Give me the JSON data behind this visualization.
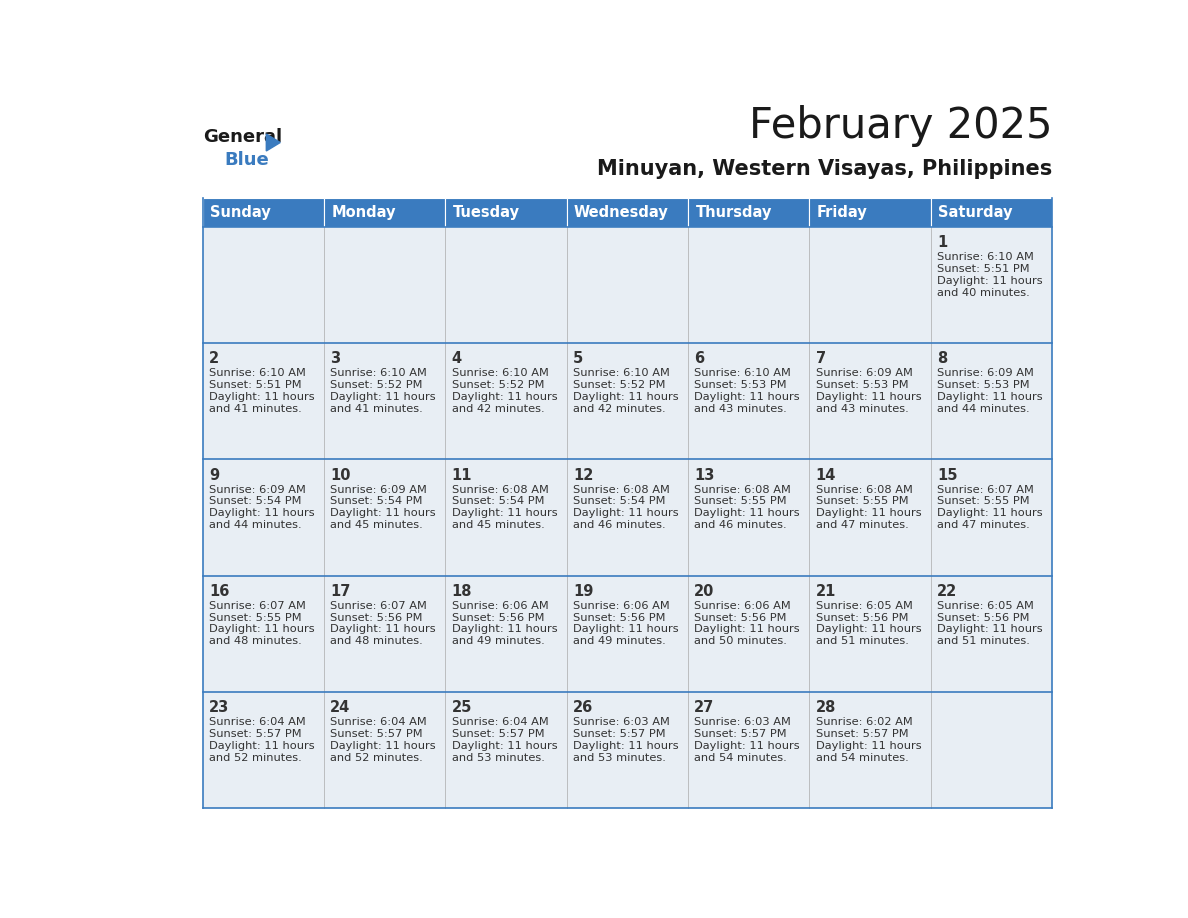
{
  "title": "February 2025",
  "subtitle": "Minuyan, Western Visayas, Philippines",
  "days_of_week": [
    "Sunday",
    "Monday",
    "Tuesday",
    "Wednesday",
    "Thursday",
    "Friday",
    "Saturday"
  ],
  "header_bg": "#3a7bbf",
  "header_text": "#ffffff",
  "cell_bg_light": "#e8eef4",
  "cell_bg_white": "#ffffff",
  "cell_border": "#3a7bbf",
  "row_border": "#3a7bbf",
  "day_num_color": "#333333",
  "info_text_color": "#333333",
  "title_color": "#1a1a1a",
  "subtitle_color": "#1a1a1a",
  "calendar": [
    [
      null,
      null,
      null,
      null,
      null,
      null,
      {
        "day": 1,
        "sunrise": "6:10 AM",
        "sunset": "5:51 PM",
        "daylight": "11 hours and 40 minutes."
      }
    ],
    [
      {
        "day": 2,
        "sunrise": "6:10 AM",
        "sunset": "5:51 PM",
        "daylight": "11 hours and 41 minutes."
      },
      {
        "day": 3,
        "sunrise": "6:10 AM",
        "sunset": "5:52 PM",
        "daylight": "11 hours and 41 minutes."
      },
      {
        "day": 4,
        "sunrise": "6:10 AM",
        "sunset": "5:52 PM",
        "daylight": "11 hours and 42 minutes."
      },
      {
        "day": 5,
        "sunrise": "6:10 AM",
        "sunset": "5:52 PM",
        "daylight": "11 hours and 42 minutes."
      },
      {
        "day": 6,
        "sunrise": "6:10 AM",
        "sunset": "5:53 PM",
        "daylight": "11 hours and 43 minutes."
      },
      {
        "day": 7,
        "sunrise": "6:09 AM",
        "sunset": "5:53 PM",
        "daylight": "11 hours and 43 minutes."
      },
      {
        "day": 8,
        "sunrise": "6:09 AM",
        "sunset": "5:53 PM",
        "daylight": "11 hours and 44 minutes."
      }
    ],
    [
      {
        "day": 9,
        "sunrise": "6:09 AM",
        "sunset": "5:54 PM",
        "daylight": "11 hours and 44 minutes."
      },
      {
        "day": 10,
        "sunrise": "6:09 AM",
        "sunset": "5:54 PM",
        "daylight": "11 hours and 45 minutes."
      },
      {
        "day": 11,
        "sunrise": "6:08 AM",
        "sunset": "5:54 PM",
        "daylight": "11 hours and 45 minutes."
      },
      {
        "day": 12,
        "sunrise": "6:08 AM",
        "sunset": "5:54 PM",
        "daylight": "11 hours and 46 minutes."
      },
      {
        "day": 13,
        "sunrise": "6:08 AM",
        "sunset": "5:55 PM",
        "daylight": "11 hours and 46 minutes."
      },
      {
        "day": 14,
        "sunrise": "6:08 AM",
        "sunset": "5:55 PM",
        "daylight": "11 hours and 47 minutes."
      },
      {
        "day": 15,
        "sunrise": "6:07 AM",
        "sunset": "5:55 PM",
        "daylight": "11 hours and 47 minutes."
      }
    ],
    [
      {
        "day": 16,
        "sunrise": "6:07 AM",
        "sunset": "5:55 PM",
        "daylight": "11 hours and 48 minutes."
      },
      {
        "day": 17,
        "sunrise": "6:07 AM",
        "sunset": "5:56 PM",
        "daylight": "11 hours and 48 minutes."
      },
      {
        "day": 18,
        "sunrise": "6:06 AM",
        "sunset": "5:56 PM",
        "daylight": "11 hours and 49 minutes."
      },
      {
        "day": 19,
        "sunrise": "6:06 AM",
        "sunset": "5:56 PM",
        "daylight": "11 hours and 49 minutes."
      },
      {
        "day": 20,
        "sunrise": "6:06 AM",
        "sunset": "5:56 PM",
        "daylight": "11 hours and 50 minutes."
      },
      {
        "day": 21,
        "sunrise": "6:05 AM",
        "sunset": "5:56 PM",
        "daylight": "11 hours and 51 minutes."
      },
      {
        "day": 22,
        "sunrise": "6:05 AM",
        "sunset": "5:56 PM",
        "daylight": "11 hours and 51 minutes."
      }
    ],
    [
      {
        "day": 23,
        "sunrise": "6:04 AM",
        "sunset": "5:57 PM",
        "daylight": "11 hours and 52 minutes."
      },
      {
        "day": 24,
        "sunrise": "6:04 AM",
        "sunset": "5:57 PM",
        "daylight": "11 hours and 52 minutes."
      },
      {
        "day": 25,
        "sunrise": "6:04 AM",
        "sunset": "5:57 PM",
        "daylight": "11 hours and 53 minutes."
      },
      {
        "day": 26,
        "sunrise": "6:03 AM",
        "sunset": "5:57 PM",
        "daylight": "11 hours and 53 minutes."
      },
      {
        "day": 27,
        "sunrise": "6:03 AM",
        "sunset": "5:57 PM",
        "daylight": "11 hours and 54 minutes."
      },
      {
        "day": 28,
        "sunrise": "6:02 AM",
        "sunset": "5:57 PM",
        "daylight": "11 hours and 54 minutes."
      },
      null
    ]
  ]
}
